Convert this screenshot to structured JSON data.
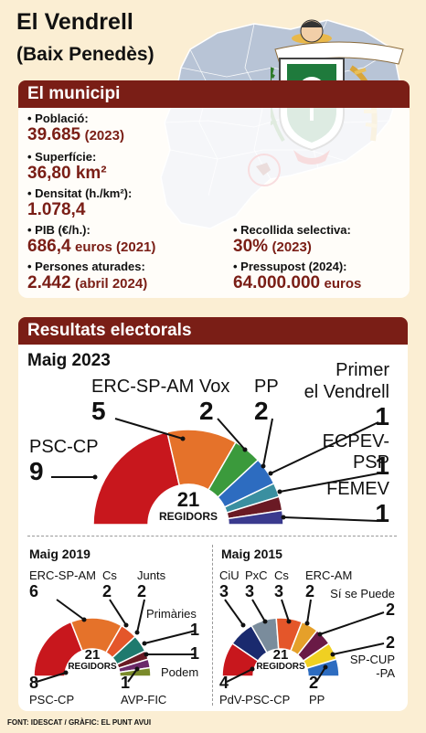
{
  "header": {
    "title": "El Vendrell",
    "subtitle": "(Baix Penedès)"
  },
  "municipi": {
    "heading": "El municipi",
    "poblacio_label": "Població:",
    "poblacio_value": "39.685",
    "poblacio_year": "(2023)",
    "superficie_label": "Superfície:",
    "superficie_value": "36,80 km²",
    "densitat_label": "Densitat (h./km²):",
    "densitat_value": "1.078,4",
    "pib_label": "PIB (€/h.):",
    "pib_value": "686,4",
    "pib_unit": "euros (2021)",
    "aturades_label": "Persones aturades:",
    "aturades_value": "2.442",
    "aturades_date": "(abril 2024)",
    "recollida_label": "Recollida selectiva:",
    "recollida_value": "30%",
    "recollida_year": "(2023)",
    "pressupost_label": "Pressupost (2024):",
    "pressupost_value": "64.000.000",
    "pressupost_unit": "euros"
  },
  "resultats": {
    "heading": "Resultats electorals",
    "regidors_label": "REGIDORS",
    "total_seats": "21"
  },
  "colors": {
    "maroon": "#7a1e16",
    "psc": "#c8171d",
    "erc": "#e5722a",
    "vox": "#3b9a3c",
    "pp": "#2d6cc0",
    "primer": "#1e3a6e",
    "ecpev": "#6a1a24",
    "femev": "#5a3a8e",
    "junts": "#1f7a6e",
    "podem": "#6b2a6a",
    "avp": "#7a8a2a",
    "ciu": "#1a2a6e",
    "pxc": "#7a8c9c",
    "cs": "#e4562a",
    "sisepuede": "#6a1a46",
    "spcup": "#f0d022"
  },
  "chart_data": [
    {
      "type": "pie",
      "title": "Maig 2023",
      "series": [
        {
          "name": "PSC-CP",
          "value": 9,
          "color": "#c8171d"
        },
        {
          "name": "ERC-SP-AM",
          "value": 5,
          "color": "#e5722a"
        },
        {
          "name": "Vox",
          "value": 2,
          "color": "#3b9a3c"
        },
        {
          "name": "PP",
          "value": 2,
          "color": "#2d6cc0"
        },
        {
          "name": "Primer el Vendrell",
          "value": 1,
          "color": "#3a8fa0"
        },
        {
          "name": "ECPEV-PSP",
          "value": 1,
          "color": "#6a1a24"
        },
        {
          "name": "FEMEV",
          "value": 1,
          "color": "#3a3a8e"
        }
      ]
    },
    {
      "type": "pie",
      "title": "Maig 2019",
      "series": [
        {
          "name": "PSC-CP",
          "value": 8,
          "color": "#c8171d"
        },
        {
          "name": "ERC-SP-AM",
          "value": 6,
          "color": "#e5722a"
        },
        {
          "name": "Cs",
          "value": 2,
          "color": "#e4562a"
        },
        {
          "name": "Junts",
          "value": 2,
          "color": "#1f7a6e"
        },
        {
          "name": "Primàries",
          "value": 1,
          "color": "#6a1a24"
        },
        {
          "name": "Podem",
          "value": 1,
          "color": "#6b2a6a"
        },
        {
          "name": "AVP-FIC",
          "value": 1,
          "color": "#7a8a2a"
        }
      ]
    },
    {
      "type": "pie",
      "title": "Maig 2015",
      "series": [
        {
          "name": "PdV-PSC-CP",
          "value": 4,
          "color": "#c8171d"
        },
        {
          "name": "CiU",
          "value": 3,
          "color": "#1a2a6e"
        },
        {
          "name": "PxC",
          "value": 3,
          "color": "#7a8c9c"
        },
        {
          "name": "Cs",
          "value": 3,
          "color": "#e4562a"
        },
        {
          "name": "ERC-AM",
          "value": 2,
          "color": "#e5a02a"
        },
        {
          "name": "Sí se Puede",
          "value": 2,
          "color": "#6a1a46"
        },
        {
          "name": "SP-CUP-PA",
          "value": 2,
          "color": "#f0d022"
        },
        {
          "name": "PP",
          "value": 2,
          "color": "#2d6cc0"
        }
      ]
    }
  ],
  "labels2023": {
    "title": "Maig 2023",
    "psc_name": "PSC-CP",
    "psc_seats": "9",
    "erc_name": "ERC-SP-AM",
    "erc_seats": "5",
    "vox_name": "Vox",
    "vox_seats": "2",
    "pp_name": "PP",
    "pp_seats": "2",
    "primer_name_1": "Primer",
    "primer_name_2": "el Vendrell",
    "primer_seats": "1",
    "ecpev_name": "ECPEV-PSP",
    "ecpev_seats": "1",
    "femev_name": "FEMEV",
    "femev_seats": "1"
  },
  "labels2019": {
    "title": "Maig 2019",
    "erc_name": "ERC-SP-AM",
    "erc_seats": "6",
    "cs_name": "Cs",
    "cs_seats": "2",
    "junts_name": "Junts",
    "junts_seats": "2",
    "primaries_name": "Primàries",
    "primaries_seats": "1",
    "podem_name": "Podem",
    "podem_seats": "1",
    "psc_name": "PSC-CP",
    "psc_seats": "8",
    "avp_name": "AVP-FIC",
    "avp_seats": "1"
  },
  "labels2015": {
    "title": "Maig 2015",
    "ciu_name": "CiU",
    "ciu_seats": "3",
    "pxc_name": "PxC",
    "pxc_seats": "3",
    "cs_name": "Cs",
    "cs_seats": "3",
    "erc_name": "ERC-AM",
    "erc_seats": "2",
    "sisepuede_name": "Sí se Puede",
    "sisepuede_seats": "2",
    "spcup_name_1": "SP-CUP",
    "spcup_name_2": "-PA",
    "spcup_seats": "2",
    "psc_name": "PdV-PSC-CP",
    "psc_seats": "4",
    "pp_name": "PP",
    "pp_seats": "2"
  },
  "footer": {
    "source": "FONT: IDESCAT / GRÀFIC: EL PUNT AVUI"
  }
}
